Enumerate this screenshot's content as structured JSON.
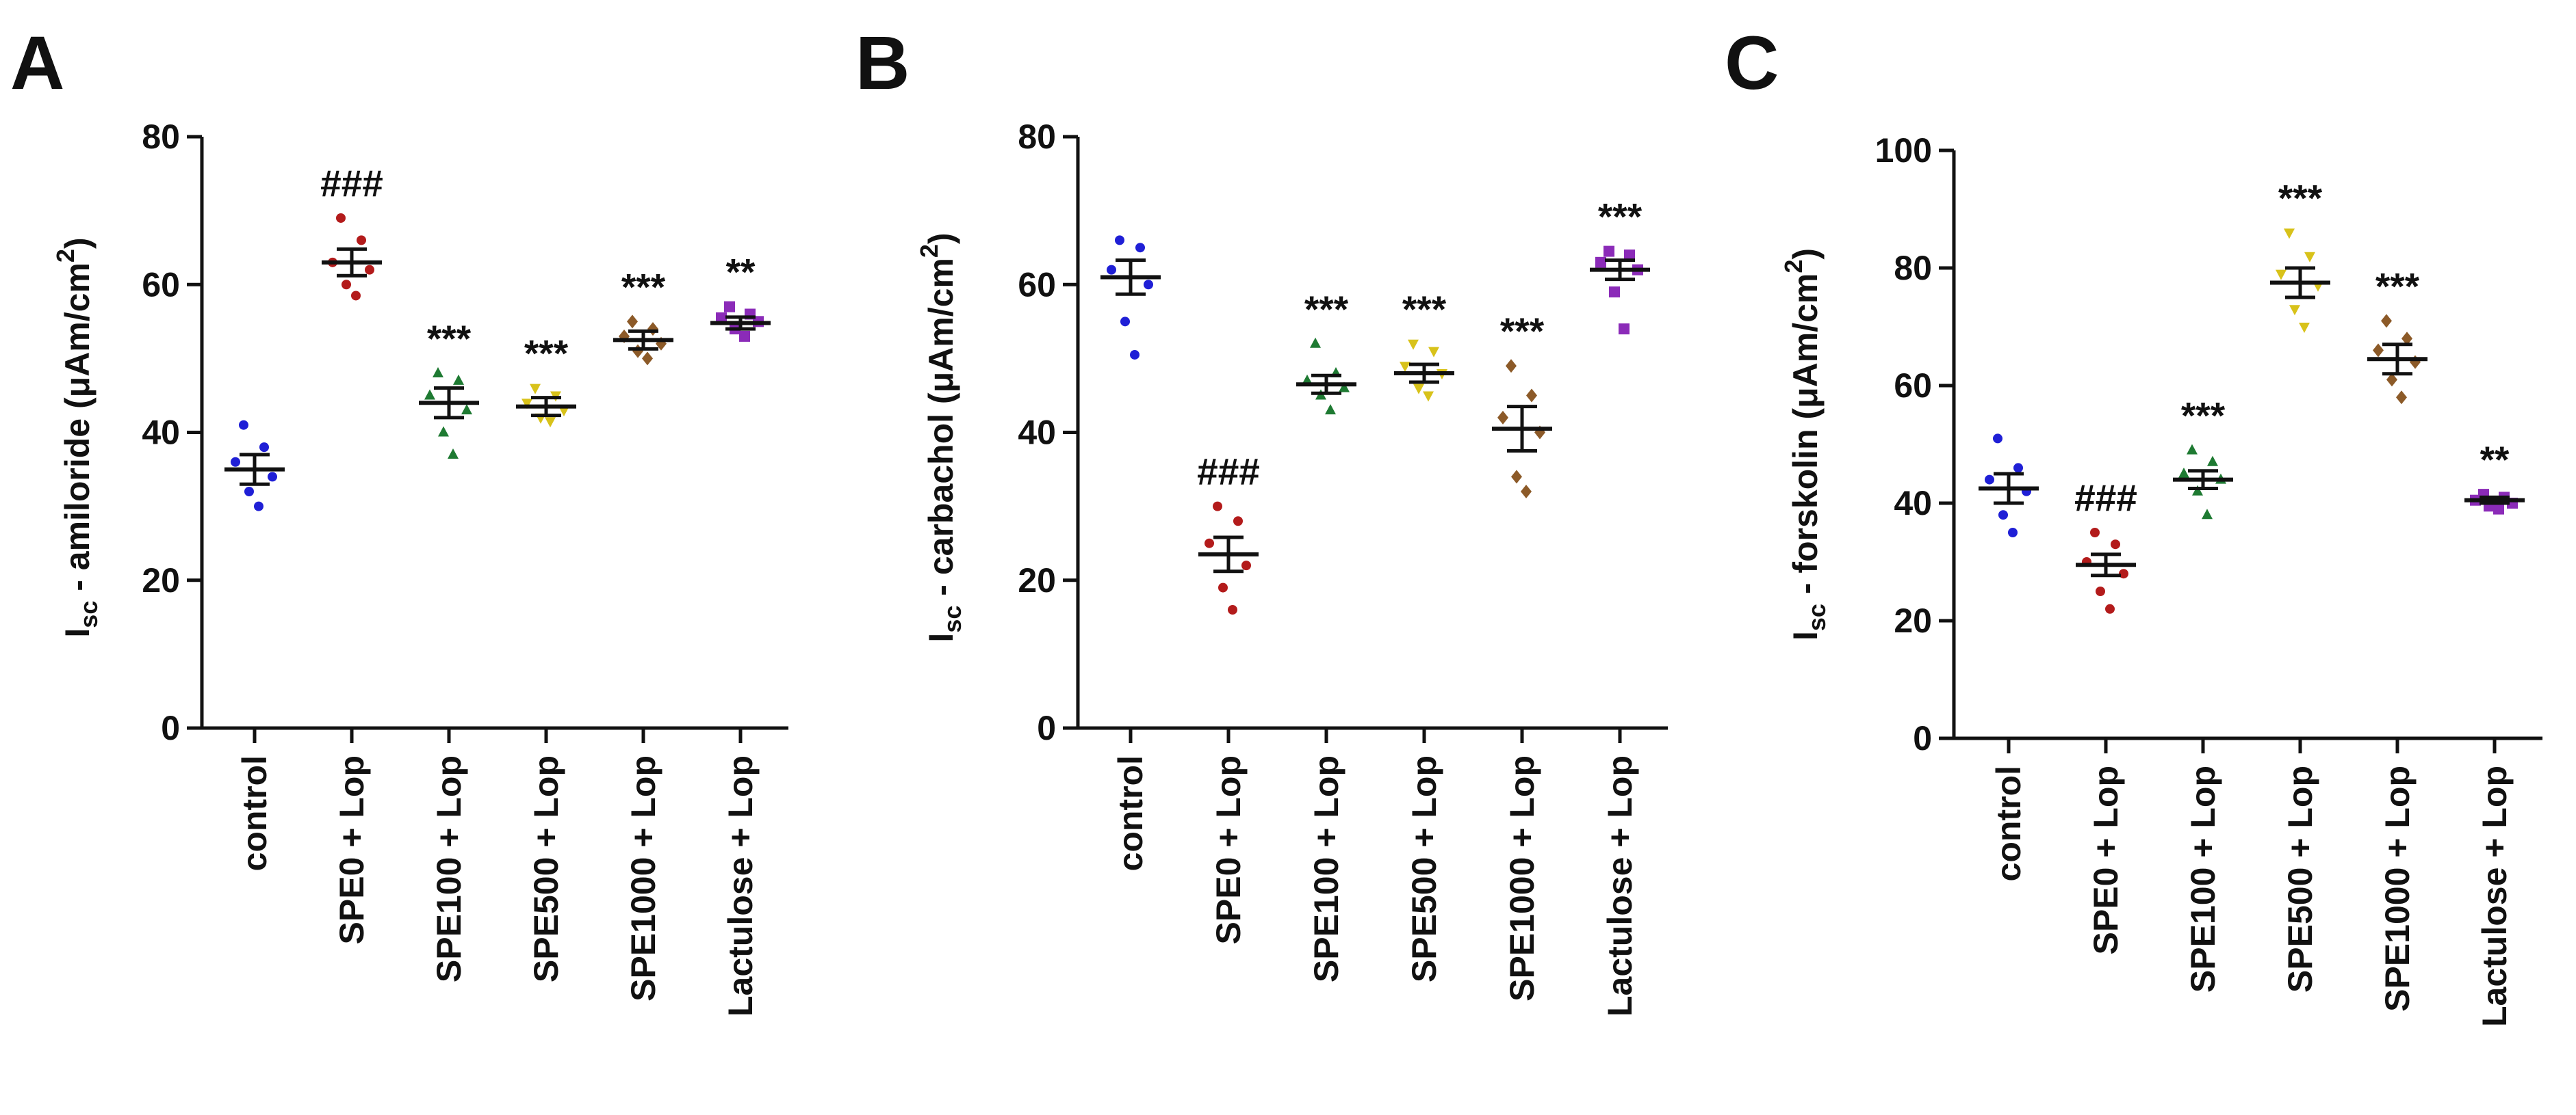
{
  "chart_data": [
    {
      "type": "scatter",
      "panel": "A",
      "ylabel_main": "I",
      "ylabel_sub": "sc",
      "ylabel_rest": " - amiloride (μAm/cm",
      "ylabel_sup": "2",
      "ylabel_end": ")",
      "ylim": [
        0,
        80
      ],
      "yticks": [
        0,
        20,
        40,
        60,
        80
      ],
      "categories": [
        "control",
        "SPE0 + Lop",
        "SPE100 + Lop",
        "SPE500 + Lop",
        "SPE1000 + Lop",
        "Lactulose + Lop"
      ],
      "means": [
        35,
        63,
        44,
        43.5,
        52.5,
        54.8
      ],
      "sems": [
        2,
        1.8,
        2,
        1.2,
        1.2,
        0.8
      ],
      "annotations": [
        "",
        "###",
        "***",
        "***",
        "***",
        "**"
      ],
      "points": [
        [
          41,
          38,
          36,
          34,
          32,
          30
        ],
        [
          69,
          66,
          63,
          62,
          60,
          58.5
        ],
        [
          48,
          47,
          45,
          43,
          40,
          37
        ],
        [
          46,
          45,
          44,
          43,
          42,
          41.5
        ],
        [
          55,
          54,
          53,
          52,
          51,
          50
        ],
        [
          57,
          56,
          55.5,
          55,
          54,
          53
        ]
      ]
    },
    {
      "type": "scatter",
      "panel": "B",
      "ylabel_main": "I",
      "ylabel_sub": "sc",
      "ylabel_rest": " - carbachol (μAm/cm",
      "ylabel_sup": "2",
      "ylabel_end": ")",
      "ylim": [
        0,
        80
      ],
      "yticks": [
        0,
        20,
        40,
        60,
        80
      ],
      "categories": [
        "control",
        "SPE0 + Lop",
        "SPE100 + Lop",
        "SPE500 + Lop",
        "SPE1000 + Lop",
        "Lactulose + Lop"
      ],
      "means": [
        61,
        23.5,
        46.5,
        48,
        40.5,
        62
      ],
      "sems": [
        2.3,
        2.3,
        1.2,
        1.2,
        3,
        1.3
      ],
      "annotations": [
        "",
        "###",
        "***",
        "***",
        "***",
        "***"
      ],
      "points": [
        [
          66,
          65,
          62,
          60,
          55,
          50.5
        ],
        [
          30,
          28,
          25,
          22,
          19,
          16
        ],
        [
          52,
          48,
          47,
          46,
          45,
          43
        ],
        [
          52,
          51,
          49,
          48,
          46,
          45
        ],
        [
          49,
          45,
          42,
          40,
          34,
          32
        ],
        [
          64.5,
          64,
          63,
          62,
          59,
          54
        ]
      ]
    },
    {
      "type": "scatter",
      "panel": "C",
      "ylabel_main": "I",
      "ylabel_sub": "sc",
      "ylabel_rest": " - forskolin (μAm/cm",
      "ylabel_sup": "2",
      "ylabel_end": ")",
      "ylim": [
        0,
        100
      ],
      "yticks": [
        0,
        20,
        40,
        60,
        80,
        100
      ],
      "categories": [
        "control",
        "SPE0 + Lop",
        "SPE100 + Lop",
        "SPE500 + Lop",
        "SPE1000 + Lop",
        "Lactulose + Lop"
      ],
      "means": [
        42.5,
        29.5,
        44,
        77.5,
        64.5,
        40.5
      ],
      "sems": [
        2.5,
        1.8,
        1.5,
        2.5,
        2.5,
        0.5
      ],
      "annotations": [
        "",
        "###",
        "***",
        "***",
        "***",
        "**"
      ],
      "points": [
        [
          51,
          46,
          44,
          42,
          38,
          35
        ],
        [
          35,
          33,
          30,
          28,
          25,
          22
        ],
        [
          49,
          47,
          45,
          44,
          42,
          38
        ],
        [
          86,
          82,
          79,
          77,
          73,
          70
        ],
        [
          71,
          68,
          66,
          64,
          61,
          58
        ],
        [
          41.5,
          41,
          40.5,
          40,
          39.5,
          39
        ]
      ]
    }
  ],
  "colors": [
    "#1f1fd6",
    "#b31b1b",
    "#1e7a32",
    "#d8c21a",
    "#8c5a28",
    "#8b2bb8"
  ],
  "marker_shapes": [
    "circle",
    "circle",
    "triangle",
    "triangle-down",
    "diamond",
    "square"
  ]
}
